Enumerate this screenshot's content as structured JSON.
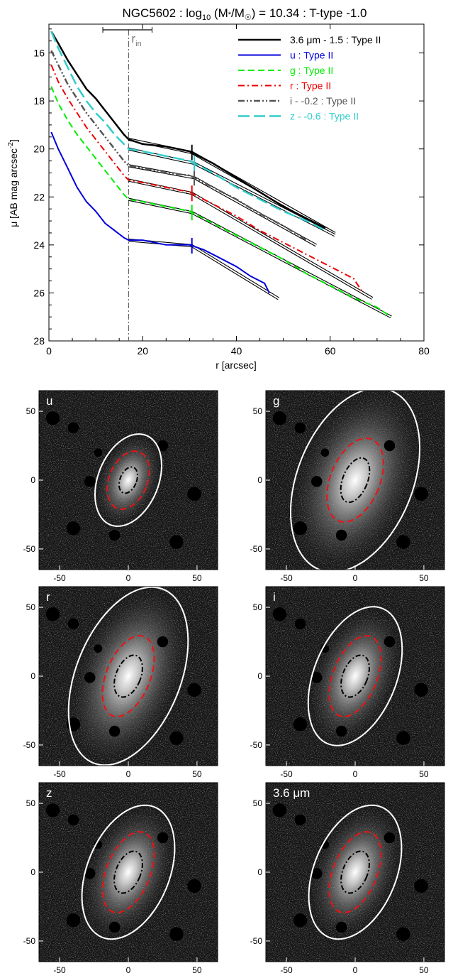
{
  "title": "NGC5602 : log10 (M*/M☉) = 10.34 : T-type -1.0",
  "title_parts": {
    "a": "NGC5602 : log",
    "sub": "10",
    "b": " (M",
    "star": "*",
    "c": "/M",
    "sun": "☉",
    "d": ") = 10.34 : T-type -1.0"
  },
  "chart_data": [
    {
      "type": "line",
      "title": "NGC5602 : log10 (M*/M☉) = 10.34 : T-type -1.0",
      "xlabel": "r [arcsec]",
      "ylabel": "μ [AB mag arcsec-2]",
      "xlim": [
        0,
        80
      ],
      "ylim": [
        28,
        14.8
      ],
      "y_inverted": true,
      "xticks": [
        0,
        20,
        40,
        60,
        80
      ],
      "yticks": [
        16,
        18,
        20,
        22,
        24,
        26,
        28
      ],
      "grid": false,
      "legend_position": "top-right",
      "r_in": {
        "label": "r",
        "sub": "in",
        "value": 17,
        "range": [
          11.5,
          22
        ]
      },
      "series": [
        {
          "name": "3.6 μm - 1.5 : Type II",
          "color": "#000000",
          "dash": "solid",
          "width": 2.5,
          "x": [
            0.5,
            2,
            4,
            6,
            8,
            10,
            12,
            14,
            16,
            17,
            20,
            25,
            30,
            35,
            40,
            45,
            50,
            55,
            59
          ],
          "y": [
            15.1,
            15.6,
            16.3,
            16.9,
            17.5,
            17.9,
            18.4,
            18.9,
            19.4,
            19.6,
            19.8,
            19.9,
            20.1,
            20.6,
            21.2,
            21.8,
            22.4,
            22.9,
            23.3
          ],
          "break_r": 30.5
        },
        {
          "name": "u : Type II",
          "color": "#0000dd",
          "dash": "solid",
          "width": 2,
          "x": [
            0.5,
            2,
            4,
            6,
            8,
            10,
            12,
            14,
            16,
            17,
            20,
            25,
            30,
            33,
            36,
            40,
            43,
            46,
            47
          ],
          "y": [
            19.3,
            20.0,
            20.8,
            21.6,
            22.2,
            22.6,
            23.1,
            23.4,
            23.7,
            23.8,
            23.8,
            24.0,
            24.0,
            24.2,
            24.5,
            24.9,
            25.3,
            25.6,
            26.0
          ],
          "break_r": 30.5
        },
        {
          "name": "g : Type II",
          "color": "#00ee00",
          "dash": "dash",
          "width": 2,
          "x": [
            0.5,
            2,
            4,
            6,
            8,
            10,
            12,
            14,
            16,
            17,
            20,
            25,
            30,
            35,
            40,
            45,
            50,
            55,
            60,
            65,
            70,
            73
          ],
          "y": [
            17.4,
            18.1,
            18.8,
            19.4,
            19.9,
            20.4,
            20.9,
            21.4,
            21.9,
            22.1,
            22.2,
            22.4,
            22.6,
            23.1,
            23.6,
            24.1,
            24.6,
            25.2,
            25.7,
            26.2,
            26.6,
            27.0
          ],
          "break_r": 30.5
        },
        {
          "name": "r : Type II",
          "color": "#ee0000",
          "dash": "dashdot",
          "width": 2,
          "x": [
            0.5,
            2,
            4,
            6,
            8,
            10,
            12,
            14,
            16,
            17,
            20,
            25,
            30,
            35,
            40,
            45,
            50,
            55,
            60,
            65,
            67
          ],
          "y": [
            16.5,
            17.2,
            17.9,
            18.5,
            19.1,
            19.6,
            20.1,
            20.6,
            21.1,
            21.3,
            21.4,
            21.6,
            21.8,
            22.3,
            22.8,
            23.4,
            23.9,
            24.4,
            24.9,
            25.4,
            26.0
          ],
          "break_r": 30.5
        },
        {
          "name": "i - -0.2 : Type II",
          "color": "#555555",
          "dash": "dashdotdot",
          "width": 2.5,
          "x": [
            0.5,
            2,
            4,
            6,
            8,
            10,
            12,
            14,
            16,
            17,
            20,
            25,
            30,
            35,
            40,
            45,
            50,
            55
          ],
          "y": [
            15.9,
            16.5,
            17.3,
            17.9,
            18.5,
            19.0,
            19.5,
            20.0,
            20.5,
            20.7,
            20.8,
            21.0,
            21.1,
            21.6,
            22.1,
            22.7,
            23.2,
            23.8
          ],
          "break_r": 31.0
        },
        {
          "name": "z - -0.6 : Type II",
          "color": "#33cccc",
          "dash": "longdash",
          "width": 2.5,
          "x": [
            0.5,
            2,
            4,
            6,
            8,
            10,
            12,
            14,
            16,
            17,
            20,
            25,
            30,
            35,
            40,
            45,
            50,
            55,
            59
          ],
          "y": [
            15.1,
            15.8,
            16.6,
            17.4,
            18.0,
            18.5,
            18.9,
            19.4,
            19.8,
            20.0,
            20.1,
            20.3,
            20.5,
            21.0,
            21.6,
            22.1,
            22.6,
            23.0,
            23.4
          ],
          "break_r": 31.0
        }
      ]
    },
    {
      "type": "heatmap",
      "label": "u",
      "xlim": [
        -65,
        65
      ],
      "ylim": [
        -65,
        65
      ],
      "xticks": [
        -50,
        0,
        50
      ],
      "yticks": [
        -50,
        0,
        50
      ],
      "ellipses": [
        {
          "style": "white-solid",
          "a": 35,
          "b": 22
        },
        {
          "style": "red-dashed",
          "a": 22,
          "b": 14
        },
        {
          "style": "black-dashdot",
          "a": 10,
          "b": 6
        }
      ]
    },
    {
      "type": "heatmap",
      "label": "g",
      "xlim": [
        -65,
        65
      ],
      "ylim": [
        -65,
        65
      ],
      "xticks": [
        -50,
        0,
        50
      ],
      "yticks": [
        -50,
        0,
        50
      ],
      "ellipses": [
        {
          "style": "white-solid",
          "a": 70,
          "b": 42
        },
        {
          "style": "red-dashed",
          "a": 32,
          "b": 18
        },
        {
          "style": "black-dashdot",
          "a": 17,
          "b": 9
        }
      ]
    },
    {
      "type": "heatmap",
      "label": "r",
      "xlim": [
        -65,
        65
      ],
      "ylim": [
        -65,
        65
      ],
      "xticks": [
        -50,
        0,
        50
      ],
      "yticks": [
        -50,
        0,
        50
      ],
      "ellipses": [
        {
          "style": "white-solid",
          "a": 68,
          "b": 38
        },
        {
          "style": "red-dashed",
          "a": 31,
          "b": 16
        },
        {
          "style": "black-dashdot",
          "a": 16,
          "b": 9
        }
      ]
    },
    {
      "type": "heatmap",
      "label": "i",
      "xlim": [
        -65,
        65
      ],
      "ylim": [
        -65,
        65
      ],
      "xticks": [
        -50,
        0,
        50
      ],
      "yticks": [
        -50,
        0,
        50
      ],
      "ellipses": [
        {
          "style": "white-solid",
          "a": 53,
          "b": 30
        },
        {
          "style": "red-dashed",
          "a": 31,
          "b": 16
        },
        {
          "style": "black-dashdot",
          "a": 16,
          "b": 9
        }
      ]
    },
    {
      "type": "heatmap",
      "label": "z",
      "xlim": [
        -65,
        65
      ],
      "ylim": [
        -65,
        65
      ],
      "xticks": [
        -50,
        0,
        50
      ],
      "yticks": [
        -50,
        0,
        50
      ],
      "ellipses": [
        {
          "style": "white-solid",
          "a": 51,
          "b": 30
        },
        {
          "style": "red-dashed",
          "a": 31,
          "b": 16
        },
        {
          "style": "black-dashdot",
          "a": 16,
          "b": 9
        }
      ]
    },
    {
      "type": "heatmap",
      "label": "3.6 μm",
      "xlim": [
        -65,
        65
      ],
      "ylim": [
        -65,
        65
      ],
      "xticks": [
        -50,
        0,
        50
      ],
      "yticks": [
        -50,
        0,
        50
      ],
      "ellipses": [
        {
          "style": "white-solid",
          "a": 51,
          "b": 30
        },
        {
          "style": "red-dashed",
          "a": 31,
          "b": 16
        },
        {
          "style": "black-dashdot",
          "a": 16,
          "b": 9
        }
      ]
    }
  ]
}
